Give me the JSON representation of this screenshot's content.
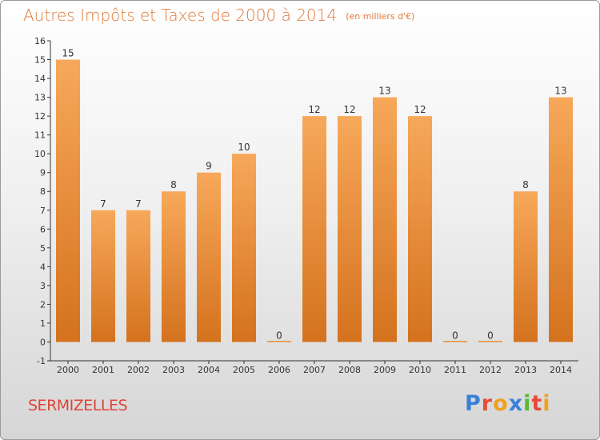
{
  "title": "Autres Impôts et Taxes de 2000 à 2014",
  "unit_label": "(en milliers d'€)",
  "town": "SERMIZELLES",
  "logo": {
    "text": "Proxiti",
    "letters": [
      {
        "ch": "P",
        "color": "#3a7fd9"
      },
      {
        "ch": "r",
        "color": "#e84a3a"
      },
      {
        "ch": "o",
        "color": "#f0a020"
      },
      {
        "ch": "x",
        "color": "#3a7fd9"
      },
      {
        "ch": "i",
        "color": "#5ab83a"
      },
      {
        "ch": "t",
        "color": "#e84a3a"
      },
      {
        "ch": "i",
        "color": "#f0a020"
      }
    ]
  },
  "colors": {
    "bar_top": "#f7a85a",
    "bar_bottom": "#d4721e",
    "title": "#e07a3a",
    "town": "#e0443a"
  },
  "chart_data": {
    "type": "bar",
    "categories": [
      "2000",
      "2001",
      "2002",
      "2003",
      "2004",
      "2005",
      "2006",
      "2007",
      "2008",
      "2009",
      "2010",
      "2011",
      "2012",
      "2013",
      "2014"
    ],
    "values": [
      15,
      7,
      7,
      8,
      9,
      10,
      0,
      12,
      12,
      13,
      12,
      0,
      0,
      8,
      13
    ],
    "ylim": [
      -1,
      16
    ],
    "yticks": [
      -1,
      0,
      1,
      2,
      3,
      4,
      5,
      6,
      7,
      8,
      9,
      10,
      11,
      12,
      13,
      14,
      15,
      16
    ],
    "grid": false
  }
}
